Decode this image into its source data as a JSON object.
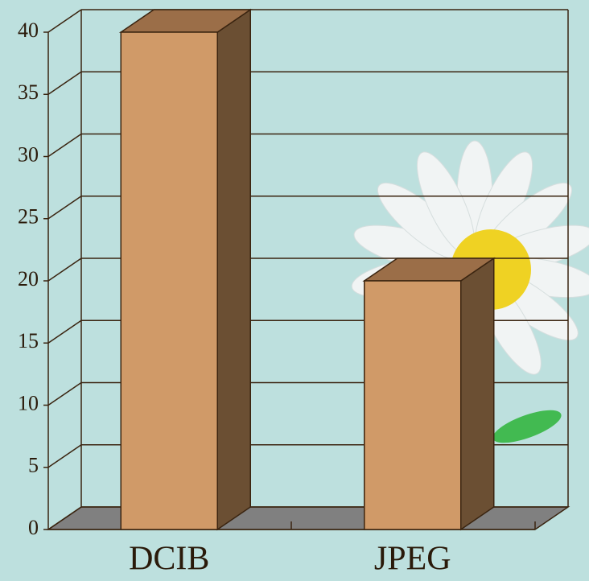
{
  "chart_data": {
    "type": "bar3d",
    "categories": [
      "DCIB",
      "JPEG"
    ],
    "values": [
      40,
      20
    ],
    "color": "#d09a68",
    "ylim": [
      0,
      40
    ],
    "yticks": [
      0,
      5,
      10,
      15,
      20,
      25,
      30,
      35,
      40
    ],
    "grid": true
  }
}
